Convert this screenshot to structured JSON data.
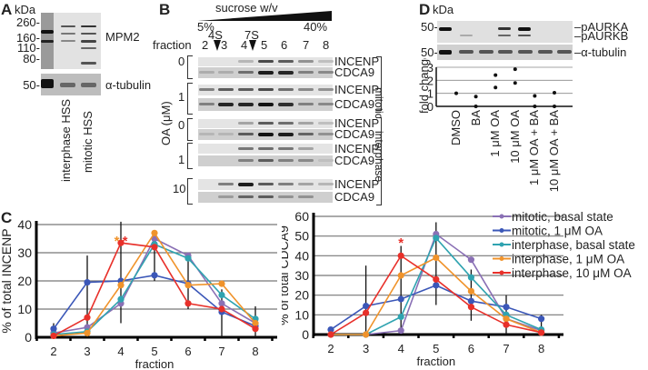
{
  "panelA": {
    "letter": "A",
    "kda_label": "kDa",
    "markers": [
      "260-",
      "160-",
      "110-",
      "80-"
    ],
    "tubulin_marker": "50-",
    "blot_labels": [
      "MPM2",
      "α-tubulin"
    ],
    "lanes": [
      "interphase HSS",
      "mitotic HSS"
    ]
  },
  "panelB": {
    "letter": "B",
    "gradient_label": "sucrose w/v",
    "gradient_low": "5%",
    "gradient_high": "40%",
    "fraction_label": "fraction",
    "fractions": [
      "2",
      "3",
      "4",
      "5",
      "6",
      "7",
      "8"
    ],
    "standards": [
      "4S",
      "7S"
    ],
    "oa_axis_label": "OA (μM)",
    "oa_concentrations": [
      "0",
      "1",
      "0",
      "1",
      "10"
    ],
    "rows": [
      "INCENP",
      "CDCA9",
      "INCENP",
      "CDCA9",
      "INCENP",
      "CDCA9",
      "INCENP",
      "CDCA9",
      "INCENP",
      "CDCA9"
    ],
    "groups": [
      "mitotic",
      "interphase"
    ]
  },
  "panelD": {
    "letter": "D",
    "kda_label": "kDa",
    "markers": [
      "50-",
      "50-"
    ],
    "blot_labels": [
      "pAURKA",
      "pAURKB",
      "α-tubulin"
    ],
    "conditions": [
      "DMSO",
      "BA",
      "1 μM OA",
      "10 μM OA",
      "1 μM OA + BA",
      "10 μM OA + BA"
    ]
  },
  "panelC": {
    "letter": "C"
  },
  "chart_data": [
    {
      "type": "scatter",
      "title": "",
      "xlabel": "",
      "ylabel": "fold change",
      "ylim": [
        0,
        3
      ],
      "yticks": [
        "0",
        "1",
        "2",
        "3"
      ],
      "grid": true,
      "categories": [
        "DMSO",
        "BA",
        "1 μM OA",
        "10 μM OA",
        "1 μM OA + BA",
        "10 μM OA + BA"
      ],
      "series": [
        {
          "name": "replicate points",
          "values": [
            [
              1.0
            ],
            [
              0.75,
              0.0
            ],
            [
              2.4,
              1.45
            ],
            [
              2.85,
              1.8
            ],
            [
              0.8,
              0.0
            ],
            [
              1.05,
              0.0
            ]
          ]
        }
      ]
    },
    {
      "type": "line",
      "title": "",
      "xlabel": "fraction",
      "ylabel": "% of total INCENP",
      "ylim": [
        0,
        40
      ],
      "yticks": [
        "0",
        "10",
        "20",
        "30",
        "40"
      ],
      "x": [
        "2",
        "3",
        "4",
        "5",
        "6",
        "7",
        "8"
      ],
      "grid": true,
      "annotations": [
        {
          "text": "**",
          "x": "4",
          "colors": [
            "#f0932b",
            "#e8302a"
          ]
        }
      ],
      "series": [
        {
          "name": "mitotic, basal state",
          "color": "#8a70b5",
          "values": [
            1.5,
            3.5,
            12,
            35,
            29,
            12,
            5
          ]
        },
        {
          "name": "mitotic, 1 μM OA",
          "color": "#3b57b8",
          "values": [
            3,
            19.5,
            20,
            22,
            19,
            9,
            4
          ]
        },
        {
          "name": "interphase, basal state",
          "color": "#2fa3b0",
          "values": [
            1,
            2,
            13.5,
            33,
            28,
            15,
            6.5
          ]
        },
        {
          "name": "interphase, 1 μM OA",
          "color": "#f0932b",
          "values": [
            0.5,
            1.5,
            18.5,
            37,
            18.5,
            19,
            5
          ]
        },
        {
          "name": "interphase, 10 μM OA",
          "color": "#e8302a",
          "values": [
            0.5,
            7,
            33.5,
            32,
            12,
            10,
            3
          ]
        }
      ],
      "error_bars": [
        {
          "x": "2",
          "low": 1,
          "high": 5
        },
        {
          "x": "3",
          "low": 0,
          "high": 29
        },
        {
          "x": "4",
          "low": 5,
          "high": 41
        },
        {
          "x": "5",
          "low": 20,
          "high": 37
        },
        {
          "x": "6",
          "low": 10,
          "high": 30
        },
        {
          "x": "7",
          "low": 0,
          "high": 17
        },
        {
          "x": "8",
          "low": 0,
          "high": 11
        }
      ]
    },
    {
      "type": "line",
      "title": "",
      "xlabel": "fraction",
      "ylabel": "% of total CDCA9",
      "ylim": [
        0,
        60
      ],
      "yticks": [
        "0",
        "10",
        "20",
        "30",
        "40",
        "50",
        "60"
      ],
      "x": [
        "2",
        "3",
        "4",
        "5",
        "6",
        "7",
        "8"
      ],
      "grid": true,
      "legend": "top-right",
      "annotations": [
        {
          "text": "*",
          "x": "4",
          "colors": [
            "#e8302a"
          ]
        }
      ],
      "series": [
        {
          "name": "mitotic, basal state",
          "color": "#8a70b5",
          "values": [
            0,
            0,
            2,
            51,
            38,
            8,
            2
          ]
        },
        {
          "name": "mitotic, 1 μM OA",
          "color": "#3b57b8",
          "values": [
            2.5,
            14.5,
            18,
            25,
            17,
            14,
            8
          ]
        },
        {
          "name": "interphase, basal state",
          "color": "#2fa3b0",
          "values": [
            0,
            0,
            9,
            49,
            29,
            10,
            2.5
          ]
        },
        {
          "name": "interphase, 1 μM OA",
          "color": "#f0932b",
          "values": [
            0,
            0,
            30,
            39,
            22,
            8,
            1
          ]
        },
        {
          "name": "interphase, 10 μM OA",
          "color": "#e8302a",
          "values": [
            0,
            11,
            40,
            28,
            14,
            5,
            1
          ]
        }
      ],
      "error_bars": [
        {
          "x": "3",
          "low": 0,
          "high": 35
        },
        {
          "x": "4",
          "low": 0,
          "high": 45
        },
        {
          "x": "5",
          "low": 15,
          "high": 57
        },
        {
          "x": "6",
          "low": 7,
          "high": 33
        },
        {
          "x": "7",
          "low": 0,
          "high": 20
        },
        {
          "x": "8",
          "low": 0,
          "high": 10
        }
      ]
    }
  ]
}
